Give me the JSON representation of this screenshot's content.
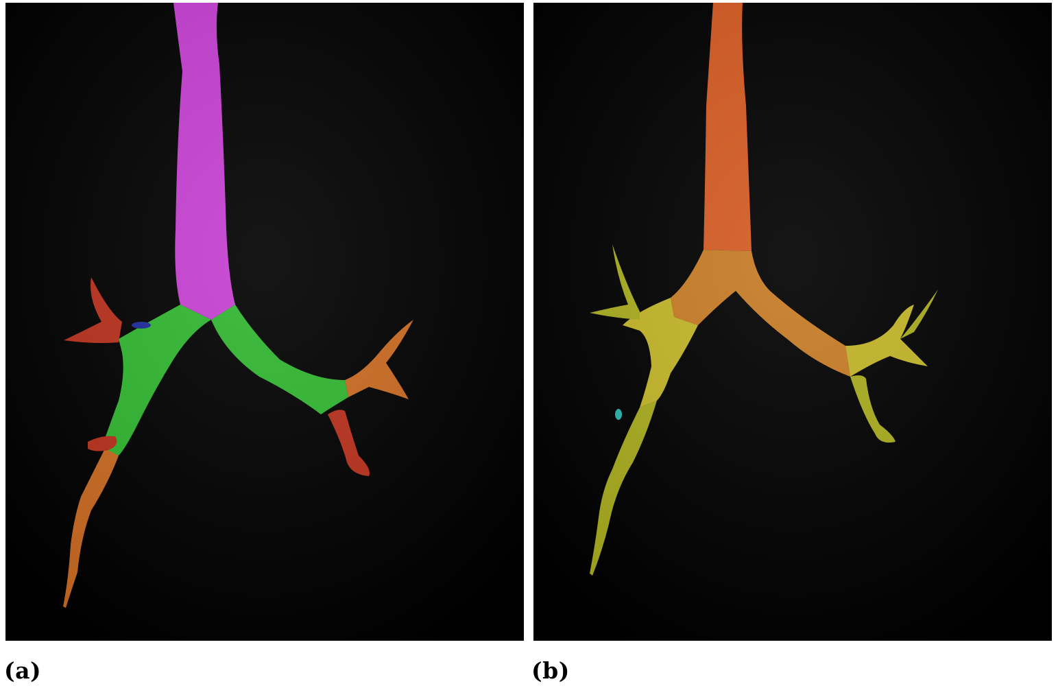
{
  "figure": {
    "panels": [
      {
        "id": "a",
        "caption": "(a)",
        "colors": {
          "background": "#000000",
          "trachea": "#c43fd0",
          "main_bronchi": "#2fb52f",
          "distal_orange": "#c96a22",
          "distal_red": "#b8301c",
          "small_blue": "#1c2a9a"
        }
      },
      {
        "id": "b",
        "caption": "(b)",
        "colors": {
          "background": "#000000",
          "trachea": "#d35a22",
          "main_bronchi": "#c67a24",
          "distal_yellow": "#a8ab1e",
          "lobar_yellow": "#c2b428",
          "small_cyan": "#2ab3b0"
        }
      }
    ]
  }
}
